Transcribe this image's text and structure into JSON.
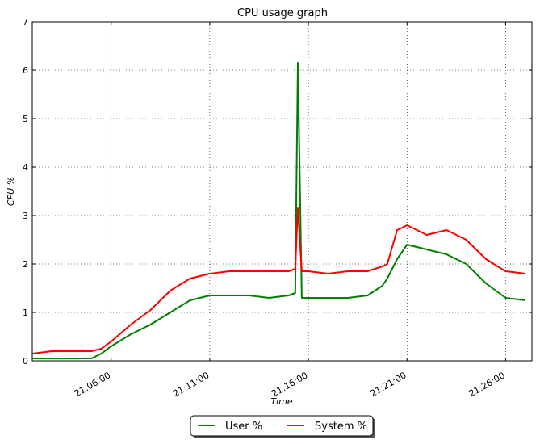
{
  "chart_data": {
    "type": "line",
    "title": "CPU usage graph",
    "xlabel": "Time",
    "ylabel": "CPU %",
    "ylim": [
      0,
      7
    ],
    "yticks": [
      0,
      1,
      2,
      3,
      4,
      5,
      6,
      7
    ],
    "x_range_seconds": [
      "21:02:00",
      "21:27:20"
    ],
    "xticks": [
      "21:06:00",
      "21:11:00",
      "21:16:00",
      "21:21:00",
      "21:26:00"
    ],
    "grid": true,
    "legend_position": "bottom-center",
    "colors": {
      "user": "#008000",
      "system": "#ff0000"
    },
    "series": [
      {
        "name": "User %",
        "color": "#008000",
        "x": [
          "21:02:00",
          "21:03:00",
          "21:04:00",
          "21:05:00",
          "21:05:30",
          "21:06:00",
          "21:07:00",
          "21:08:00",
          "21:09:00",
          "21:10:00",
          "21:11:00",
          "21:12:00",
          "21:13:00",
          "21:14:00",
          "21:15:00",
          "21:15:20",
          "21:15:28",
          "21:15:40",
          "21:16:00",
          "21:17:00",
          "21:18:00",
          "21:19:00",
          "21:19:45",
          "21:20:00",
          "21:20:30",
          "21:21:00",
          "21:22:00",
          "21:23:00",
          "21:24:00",
          "21:25:00",
          "21:26:00",
          "21:27:00"
        ],
        "values": [
          0.05,
          0.05,
          0.05,
          0.05,
          0.15,
          0.3,
          0.55,
          0.75,
          1.0,
          1.25,
          1.35,
          1.35,
          1.35,
          1.3,
          1.35,
          1.4,
          6.15,
          1.3,
          1.3,
          1.3,
          1.3,
          1.35,
          1.55,
          1.7,
          2.1,
          2.4,
          2.3,
          2.2,
          2.0,
          1.6,
          1.3,
          1.25
        ]
      },
      {
        "name": "System %",
        "color": "#ff0000",
        "x": [
          "21:02:00",
          "21:03:00",
          "21:04:00",
          "21:05:00",
          "21:05:30",
          "21:06:00",
          "21:07:00",
          "21:08:00",
          "21:09:00",
          "21:10:00",
          "21:11:00",
          "21:12:00",
          "21:13:00",
          "21:14:00",
          "21:15:00",
          "21:15:20",
          "21:15:28",
          "21:15:40",
          "21:16:00",
          "21:17:00",
          "21:18:00",
          "21:19:00",
          "21:19:45",
          "21:20:00",
          "21:20:30",
          "21:21:00",
          "21:22:00",
          "21:23:00",
          "21:24:00",
          "21:25:00",
          "21:26:00",
          "21:27:00"
        ],
        "values": [
          0.15,
          0.2,
          0.2,
          0.2,
          0.25,
          0.4,
          0.75,
          1.05,
          1.45,
          1.7,
          1.8,
          1.85,
          1.85,
          1.85,
          1.85,
          1.9,
          3.15,
          1.85,
          1.85,
          1.8,
          1.85,
          1.85,
          1.95,
          2.0,
          2.7,
          2.8,
          2.6,
          2.7,
          2.5,
          2.1,
          1.85,
          1.8
        ]
      }
    ]
  },
  "legend": {
    "user_label": "User %",
    "system_label": "System %"
  }
}
